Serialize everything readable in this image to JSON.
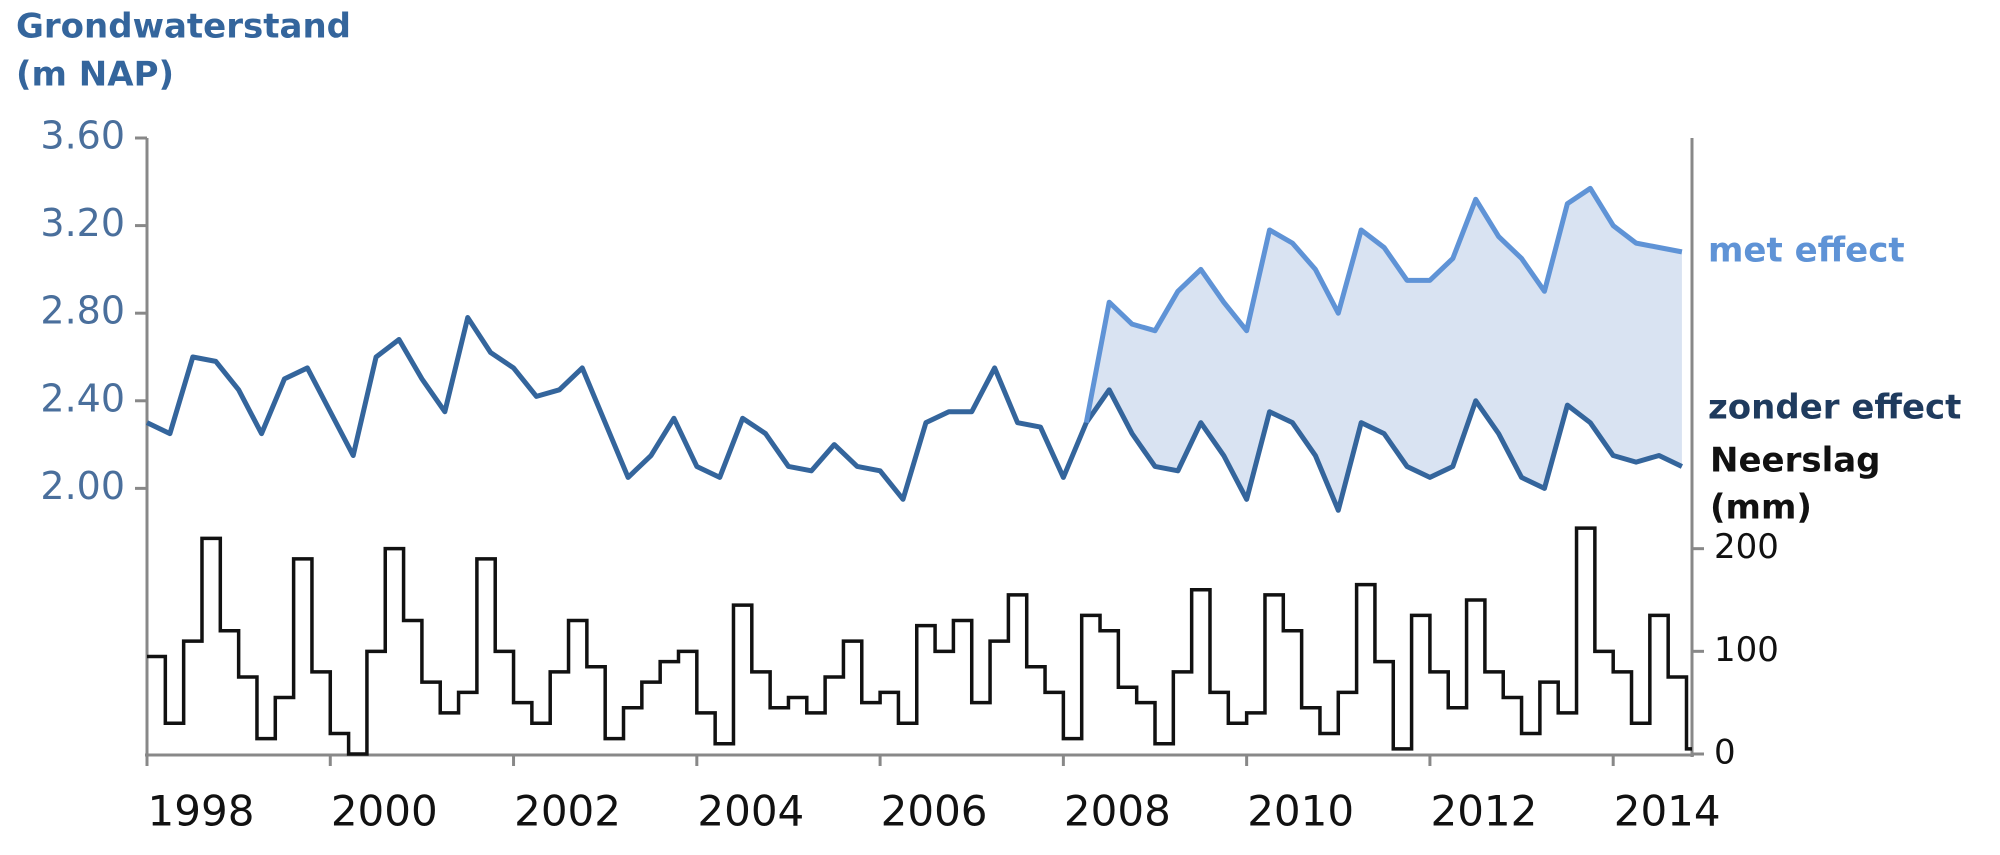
{
  "chart_data": [
    {
      "type": "line",
      "ylabel": [
        "Grondwaterstand",
        "(m NAP)"
      ],
      "x": [
        1998,
        1998.25,
        1998.5,
        1998.75,
        1999,
        1999.25,
        1999.5,
        1999.75,
        2000,
        2000.25,
        2000.5,
        2000.75,
        2001,
        2001.25,
        2001.5,
        2001.75,
        2002,
        2002.25,
        2002.5,
        2002.75,
        2003,
        2003.25,
        2003.5,
        2003.75,
        2004,
        2004.25,
        2004.5,
        2004.75,
        2005,
        2005.25,
        2005.5,
        2005.75,
        2006,
        2006.25,
        2006.5,
        2006.75,
        2007,
        2007.25,
        2007.5,
        2007.75,
        2008,
        2008.25,
        2008.5,
        2008.75,
        2009,
        2009.25,
        2009.5,
        2009.75,
        2010,
        2010.25,
        2010.5,
        2010.75,
        2011,
        2011.25,
        2011.5,
        2011.75,
        2012,
        2012.25,
        2012.5,
        2012.75,
        2013,
        2013.25,
        2013.5,
        2013.75,
        2014,
        2014.25,
        2014.5,
        2014.75
      ],
      "xlim": [
        1998,
        2014.86
      ],
      "xticks": [
        1998,
        2000,
        2002,
        2004,
        2006,
        2008,
        2010,
        2012,
        2014
      ],
      "ylim": [
        0.787,
        3.6
      ],
      "yticks": [
        {
          "value": 2,
          "label": "2.00"
        },
        {
          "value": 2.4,
          "label": "2.40"
        },
        {
          "value": 2.8,
          "label": "2.80"
        },
        {
          "value": 3.2,
          "label": "3.20"
        },
        {
          "value": 3.6,
          "label": "3.60"
        }
      ],
      "band_color": "#d9e3f2",
      "series": [
        {
          "name": "zonder effect",
          "color": "#34659c",
          "label_color": "#1f3b5e",
          "values": [
            2.3,
            2.25,
            2.6,
            2.58,
            2.45,
            2.25,
            2.5,
            2.55,
            2.35,
            2.15,
            2.6,
            2.68,
            2.5,
            2.35,
            2.78,
            2.62,
            2.55,
            2.42,
            2.45,
            2.55,
            2.3,
            2.05,
            2.15,
            2.32,
            2.1,
            2.05,
            2.32,
            2.25,
            2.1,
            2.08,
            2.2,
            2.1,
            2.08,
            1.95,
            2.3,
            2.35,
            2.35,
            2.55,
            2.3,
            2.28,
            2.05,
            2.3,
            2.45,
            2.25,
            2.1,
            2.08,
            2.3,
            2.15,
            1.95,
            2.35,
            2.3,
            2.15,
            1.9,
            2.3,
            2.25,
            2.1,
            2.05,
            2.1,
            2.4,
            2.25,
            2.05,
            2.0,
            2.38,
            2.3,
            2.15,
            2.12,
            2.15,
            2.1
          ]
        },
        {
          "name": "met effect",
          "color": "#5f93d6",
          "label_color": "#5f93d6",
          "values": [
            null,
            null,
            null,
            null,
            null,
            null,
            null,
            null,
            null,
            null,
            null,
            null,
            null,
            null,
            null,
            null,
            null,
            null,
            null,
            null,
            null,
            null,
            null,
            null,
            null,
            null,
            null,
            null,
            null,
            null,
            null,
            null,
            null,
            null,
            null,
            null,
            null,
            null,
            null,
            null,
            null,
            2.3,
            2.85,
            2.75,
            2.72,
            2.9,
            3.0,
            2.85,
            2.72,
            3.18,
            3.12,
            3.0,
            2.8,
            3.18,
            3.1,
            2.95,
            2.95,
            3.05,
            3.32,
            3.15,
            3.05,
            2.9,
            3.3,
            3.37,
            3.2,
            3.12,
            3.1,
            3.08
          ]
        }
      ]
    },
    {
      "type": "step",
      "ylabel": [
        "Neerslag",
        "(mm)"
      ],
      "color": "#111111",
      "x": [
        1998,
        1998.2,
        1998.4,
        1998.6,
        1998.8,
        1999,
        1999.2,
        1999.4,
        1999.6,
        1999.8,
        2000,
        2000.2,
        2000.4,
        2000.6,
        2000.8,
        2001,
        2001.2,
        2001.4,
        2001.6,
        2001.8,
        2002,
        2002.2,
        2002.4,
        2002.6,
        2002.8,
        2003,
        2003.2,
        2003.4,
        2003.6,
        2003.8,
        2004,
        2004.2,
        2004.4,
        2004.6,
        2004.8,
        2005,
        2005.2,
        2005.4,
        2005.6,
        2005.8,
        2006,
        2006.2,
        2006.4,
        2006.6,
        2006.8,
        2007,
        2007.2,
        2007.4,
        2007.6,
        2007.8,
        2008,
        2008.2,
        2008.4,
        2008.6,
        2008.8,
        2009,
        2009.2,
        2009.4,
        2009.6,
        2009.8,
        2010,
        2010.2,
        2010.4,
        2010.6,
        2010.8,
        2011,
        2011.2,
        2011.4,
        2011.6,
        2011.8,
        2012,
        2012.2,
        2012.4,
        2012.6,
        2012.8,
        2013,
        2013.2,
        2013.4,
        2013.6,
        2013.8,
        2014,
        2014.2,
        2014.4,
        2014.6,
        2014.8
      ],
      "xlim": [
        1998,
        2014.86
      ],
      "ylim": [
        0,
        600
      ],
      "yticks": [
        0,
        100,
        200
      ],
      "values": [
        95,
        30,
        110,
        210,
        120,
        75,
        15,
        55,
        190,
        80,
        20,
        0,
        100,
        200,
        130,
        70,
        40,
        60,
        190,
        100,
        50,
        30,
        80,
        130,
        85,
        15,
        45,
        70,
        90,
        100,
        40,
        10,
        145,
        80,
        45,
        55,
        40,
        75,
        110,
        50,
        60,
        30,
        125,
        100,
        130,
        50,
        110,
        155,
        85,
        60,
        15,
        135,
        120,
        65,
        50,
        10,
        80,
        160,
        60,
        30,
        40,
        155,
        120,
        45,
        20,
        60,
        165,
        90,
        5,
        135,
        80,
        45,
        150,
        80,
        55,
        20,
        70,
        40,
        220,
        100,
        80,
        30,
        135,
        75,
        5
      ]
    }
  ]
}
